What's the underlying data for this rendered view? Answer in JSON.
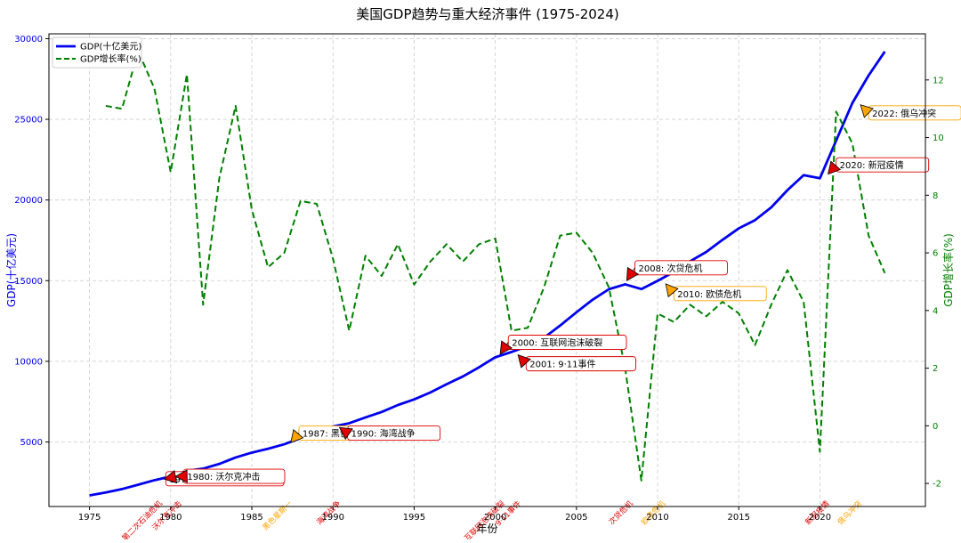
{
  "chart_data": {
    "type": "line",
    "title": "美国GDP趋势与重大经济事件 (1975-2024)",
    "xlabel": "年份",
    "ylabel_left": "GDP(十亿美元)",
    "ylabel_right": "GDP增长率(%)",
    "xlim": [
      1972.5,
      2026.5
    ],
    "ylim_left": [
      1000,
      30300
    ],
    "ylim_right": [
      -2.8,
      13.6
    ],
    "x_ticks": [
      1975,
      1980,
      1985,
      1990,
      1995,
      2000,
      2005,
      2010,
      2015,
      2020
    ],
    "y_ticks_left": [
      5000,
      10000,
      15000,
      20000,
      25000,
      30000
    ],
    "y_ticks_right": [
      -2,
      0,
      2,
      4,
      6,
      8,
      10,
      12
    ],
    "grid": true,
    "legend_position": "top-left",
    "colors": {
      "gdp": "#0000ee",
      "growth": "#008000",
      "red_event": "#e00000",
      "orange_event": "#ffa500",
      "grid": "#cccccc"
    },
    "series": [
      {
        "name": "GDP(十亿美元)",
        "axis": "left",
        "style": "solid",
        "x": [
          1975,
          1976,
          1977,
          1978,
          1979,
          1980,
          1981,
          1982,
          1983,
          1984,
          1985,
          1986,
          1987,
          1988,
          1989,
          1990,
          1991,
          1992,
          1993,
          1994,
          1995,
          1996,
          1997,
          1998,
          1999,
          2000,
          2001,
          2002,
          2003,
          2004,
          2005,
          2006,
          2007,
          2008,
          2009,
          2010,
          2011,
          2012,
          2013,
          2014,
          2015,
          2016,
          2017,
          2018,
          2019,
          2020,
          2021,
          2022,
          2023,
          2024
        ],
        "values": [
          1690,
          1870,
          2080,
          2350,
          2630,
          2860,
          3210,
          3350,
          3640,
          4040,
          4340,
          4580,
          4860,
          5240,
          5640,
          5960,
          6160,
          6520,
          6860,
          7290,
          7640,
          8070,
          8580,
          9060,
          9630,
          10250,
          10580,
          10940,
          11460,
          12220,
          13040,
          13820,
          14470,
          14770,
          14480,
          14990,
          15540,
          16200,
          16780,
          17530,
          18240,
          18750,
          19540,
          20610,
          21540,
          21350,
          23680,
          26010,
          27720,
          29200
        ]
      },
      {
        "name": "GDP增长率(%)",
        "axis": "right",
        "style": "dashed",
        "x": [
          1976,
          1977,
          1978,
          1979,
          1980,
          1981,
          1982,
          1983,
          1984,
          1985,
          1986,
          1987,
          1988,
          1989,
          1990,
          1991,
          1992,
          1993,
          1994,
          1995,
          1996,
          1997,
          1998,
          1999,
          2000,
          2001,
          2002,
          2003,
          2004,
          2005,
          2006,
          2007,
          2008,
          2009,
          2010,
          2011,
          2012,
          2013,
          2014,
          2015,
          2016,
          2017,
          2018,
          2019,
          2020,
          2021,
          2022,
          2023,
          2024
        ],
        "values": [
          11.1,
          11.0,
          13.0,
          11.7,
          8.8,
          12.2,
          4.2,
          8.6,
          11.1,
          7.5,
          5.5,
          6.0,
          7.8,
          7.7,
          5.8,
          3.3,
          5.9,
          5.2,
          6.3,
          4.9,
          5.7,
          6.3,
          5.7,
          6.3,
          6.5,
          3.3,
          3.4,
          4.8,
          6.6,
          6.7,
          6.0,
          4.8,
          2.0,
          -1.9,
          3.9,
          3.6,
          4.2,
          3.8,
          4.3,
          3.9,
          2.8,
          4.2,
          5.4,
          4.3,
          -0.9,
          10.9,
          9.8,
          6.6,
          5.3
        ]
      }
    ],
    "annotations": [
      {
        "x": 1979.6,
        "y": 2700,
        "text": "1979: 第二次石油危机",
        "tx": 1979.7,
        "ty": 2720,
        "color": "red"
      },
      {
        "x": 1980.3,
        "y": 2860,
        "text": "1980: 沃尔克冲击",
        "tx": 1980.8,
        "ty": 2870,
        "color": "red"
      },
      {
        "x": 1987.4,
        "y": 4960,
        "text": "1987: 黑色星期一",
        "tx": 1987.9,
        "ty": 5550,
        "color": "orange"
      },
      {
        "x": 1990.4,
        "y": 5900,
        "text": "1990: 海湾战争",
        "tx": 1990.9,
        "ty": 5550,
        "color": "red"
      },
      {
        "x": 2000.3,
        "y": 10450,
        "text": "2000: 互联网泡沫破裂",
        "tx": 2000.8,
        "ty": 11180,
        "color": "red"
      },
      {
        "x": 2001.4,
        "y": 10400,
        "text": "2001: 9·11事件",
        "tx": 2001.9,
        "ty": 9850,
        "color": "red"
      },
      {
        "x": 2008.1,
        "y": 15000,
        "text": "2008: 次贷危机",
        "tx": 2008.6,
        "ty": 15800,
        "color": "red"
      },
      {
        "x": 2010.5,
        "y": 14800,
        "text": "2010: 欧债危机",
        "tx": 2011.0,
        "ty": 14200,
        "color": "orange"
      },
      {
        "x": 2020.5,
        "y": 21600,
        "text": "2020: 新冠疫情",
        "tx": 2021.0,
        "ty": 22180,
        "color": "red"
      },
      {
        "x": 2022.5,
        "y": 25900,
        "text": "2022: 俄乌冲突",
        "tx": 2023.0,
        "ty": 25400,
        "color": "orange"
      }
    ],
    "bottom_labels": [
      {
        "x": 1979.5,
        "text": "第二次石油危机",
        "color": "red"
      },
      {
        "x": 1980.7,
        "text": "沃尔克冲击",
        "color": "red"
      },
      {
        "x": 1987.5,
        "text": "黑色星期一",
        "color": "orange"
      },
      {
        "x": 1990.5,
        "text": "海湾战争",
        "color": "red"
      },
      {
        "x": 2000.6,
        "text": "互联网泡沫破裂",
        "color": "red"
      },
      {
        "x": 2001.6,
        "text": "9·11事件",
        "color": "red"
      },
      {
        "x": 2008.5,
        "text": "次贷危机",
        "color": "red"
      },
      {
        "x": 2010.5,
        "text": "欧债危机",
        "color": "orange"
      },
      {
        "x": 2020.6,
        "text": "新冠疫情",
        "color": "red"
      },
      {
        "x": 2022.6,
        "text": "俄乌冲突",
        "color": "orange"
      }
    ]
  }
}
